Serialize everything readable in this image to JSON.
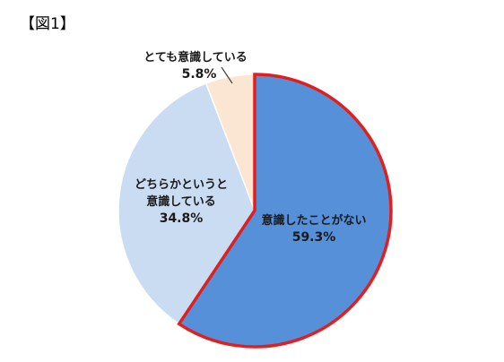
{
  "figure_title": "【図1】",
  "chart_data": {
    "type": "pie",
    "title": "",
    "start_angle_deg": 0,
    "direction": "clockwise",
    "slices": [
      {
        "label": "意識したことがない",
        "value": 59.3,
        "value_label": "59.3%",
        "color": "#5590d8",
        "highlight": true,
        "highlight_color": "#e02020"
      },
      {
        "label": "どちらかというと\n意識している",
        "value": 34.8,
        "value_label": "34.8%",
        "color": "#c9dcf1",
        "highlight": false
      },
      {
        "label": "とても意識している",
        "value": 5.8,
        "value_label": "5.8%",
        "color": "#fbe6d4",
        "highlight": false
      }
    ]
  }
}
